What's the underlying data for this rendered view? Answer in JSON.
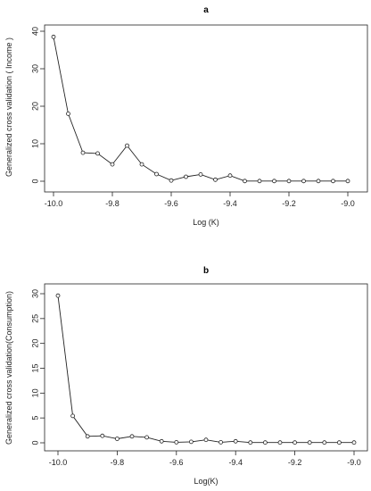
{
  "chart_data": [
    {
      "type": "line",
      "title": "a",
      "xlabel": "Log (K)",
      "ylabel": "Generalized cross validation ( Income )",
      "xlim": [
        -10.0,
        -9.0
      ],
      "ylim": [
        0,
        40
      ],
      "xticks": [
        "-10.0",
        "-9.8",
        "-9.6",
        "-9.4",
        "-9.2",
        "-9.0"
      ],
      "yticks": [
        "0",
        "10",
        "20",
        "30",
        "40"
      ],
      "x": [
        -10.0,
        -9.95,
        -9.9,
        -9.85,
        -9.8,
        -9.75,
        -9.7,
        -9.65,
        -9.6,
        -9.55,
        -9.5,
        -9.45,
        -9.4,
        -9.35,
        -9.3,
        -9.25,
        -9.2,
        -9.15,
        -9.1,
        -9.05,
        -9.0
      ],
      "y": [
        38.5,
        18.0,
        7.6,
        7.4,
        4.5,
        9.5,
        4.5,
        1.9,
        0.2,
        1.2,
        1.8,
        0.4,
        1.5,
        0.05,
        0.05,
        0.05,
        0.05,
        0.05,
        0.05,
        0.05,
        0.05
      ]
    },
    {
      "type": "line",
      "title": "b",
      "xlabel": "Log(K)",
      "ylabel": "Generalized cross validation(Consumption)",
      "xlim": [
        -10.0,
        -9.0
      ],
      "ylim": [
        0,
        30
      ],
      "xticks": [
        "-10.0",
        "-9.8",
        "-9.6",
        "-9.4",
        "-9.2",
        "-9.0"
      ],
      "yticks": [
        "0",
        "5",
        "10",
        "15",
        "20",
        "25",
        "30"
      ],
      "x": [
        -10.0,
        -9.95,
        -9.9,
        -9.85,
        -9.8,
        -9.75,
        -9.7,
        -9.65,
        -9.6,
        -9.55,
        -9.5,
        -9.45,
        -9.4,
        -9.35,
        -9.3,
        -9.25,
        -9.2,
        -9.15,
        -9.1,
        -9.05,
        -9.0
      ],
      "y": [
        29.6,
        5.4,
        1.3,
        1.4,
        0.8,
        1.3,
        1.1,
        0.3,
        0.1,
        0.2,
        0.6,
        0.1,
        0.3,
        0.05,
        0.05,
        0.05,
        0.05,
        0.05,
        0.05,
        0.05,
        0.05
      ]
    }
  ]
}
